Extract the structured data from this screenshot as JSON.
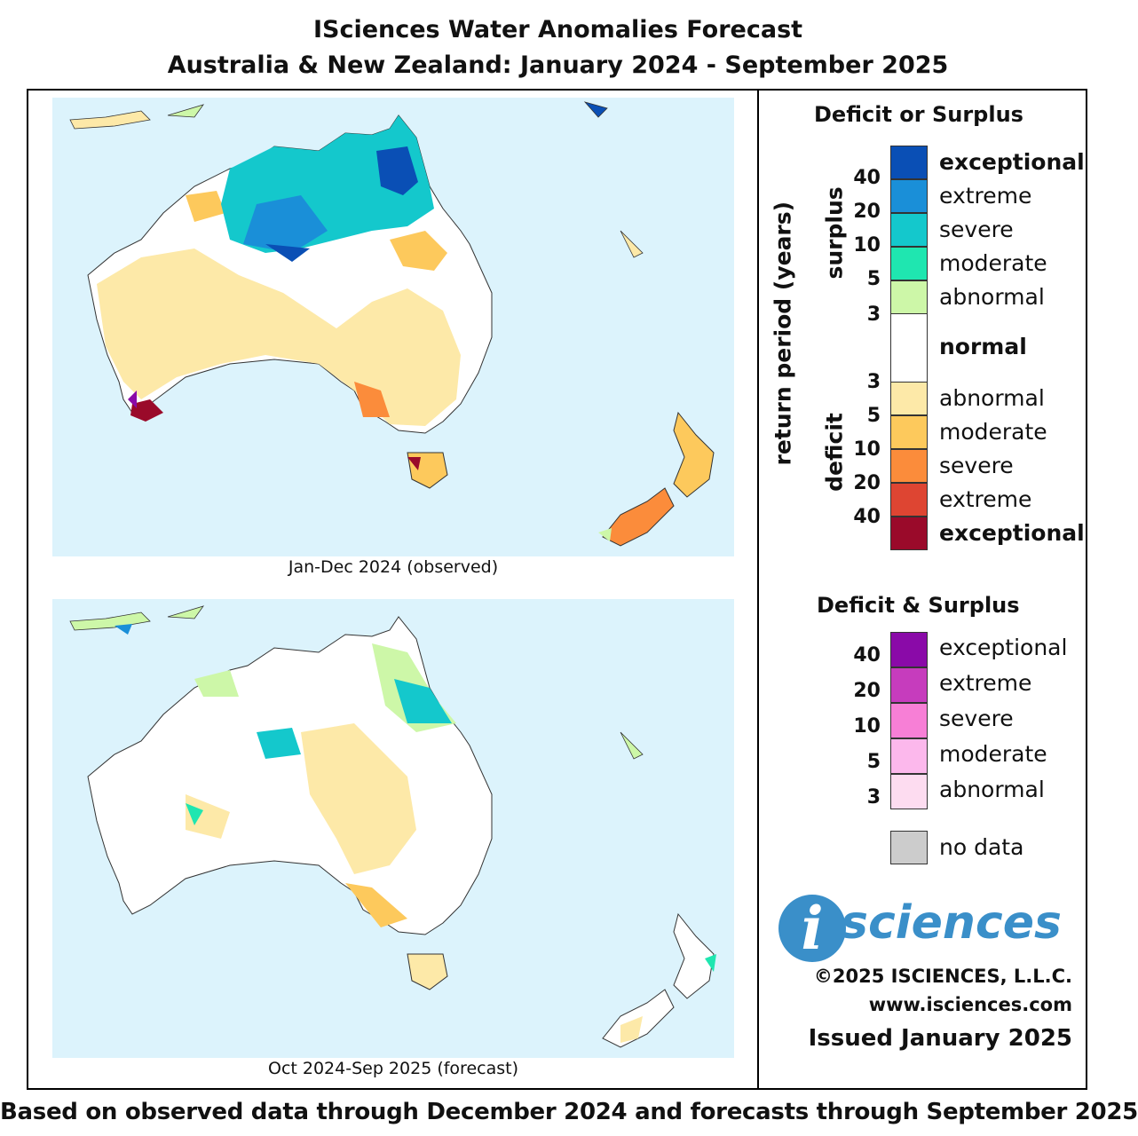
{
  "title_line1": "ISciences Water Anomalies Forecast",
  "title_line2": "Australia & New Zealand: January 2024 - September 2025",
  "maps": [
    {
      "caption": "Jan-Dec 2024 (observed)"
    },
    {
      "caption": "Oct 2024-Sep 2025 (forecast)"
    }
  ],
  "legend": {
    "heading_main": "Deficit or Surplus",
    "axis_label": "return period (years)",
    "surplus_label": "surplus",
    "deficit_label": "deficit",
    "surplus_classes": [
      {
        "label": "exceptional",
        "color": "#0a4fb5"
      },
      {
        "label": "extreme",
        "color": "#1a8fd8"
      },
      {
        "label": "severe",
        "color": "#14c8cc"
      },
      {
        "label": "moderate",
        "color": "#1fe6b0"
      },
      {
        "label": "abnormal",
        "color": "#cdf7a8"
      }
    ],
    "normal_label": "normal",
    "deficit_classes": [
      {
        "label": "abnormal",
        "color": "#fde9a8"
      },
      {
        "label": "moderate",
        "color": "#fdc95c"
      },
      {
        "label": "severe",
        "color": "#fb8c3b"
      },
      {
        "label": "extreme",
        "color": "#de4532"
      },
      {
        "label": "exceptional",
        "color": "#9a0a2a"
      }
    ],
    "surplus_ticks": [
      "40",
      "20",
      "10",
      "5",
      "3"
    ],
    "deficit_ticks": [
      "3",
      "5",
      "10",
      "20",
      "40"
    ],
    "heading_both": "Deficit & Surplus",
    "both_classes": [
      {
        "label": "exceptional",
        "color": "#8a0aa8"
      },
      {
        "label": "extreme",
        "color": "#c63cbd"
      },
      {
        "label": "severe",
        "color": "#f77fd6"
      },
      {
        "label": "moderate",
        "color": "#fcb8ec"
      },
      {
        "label": "abnormal",
        "color": "#fddcf0"
      }
    ],
    "both_ticks": [
      "40",
      "20",
      "10",
      "5",
      "3"
    ],
    "nodata_label": "no data",
    "nodata_color": "#cccccc"
  },
  "logo": {
    "mark": "i",
    "text": "sciences"
  },
  "copyright": "©2025 ISCIENCES, L.L.C.",
  "website": "www.isciences.com",
  "issued": "Issued January 2025",
  "footer": "Based on observed data through December 2024 and forecasts through September 2025"
}
